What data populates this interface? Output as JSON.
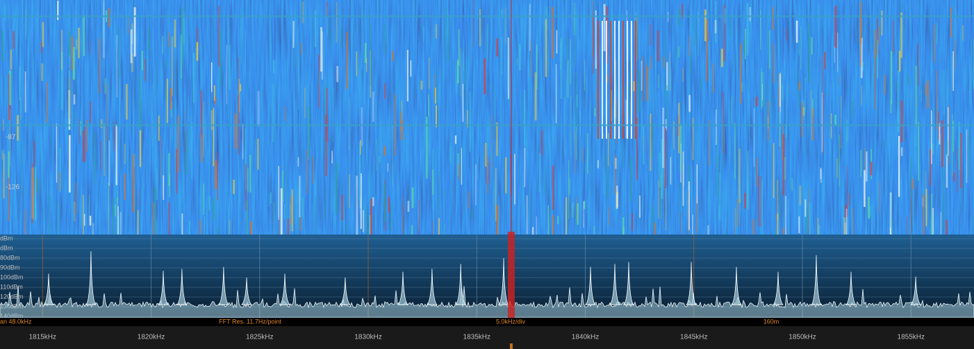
{
  "waterfall": {
    "labels": [
      "-87",
      "-126"
    ]
  },
  "spectrum": {
    "dbm_ticks": [
      {
        "value": -60,
        "label": "dBm"
      },
      {
        "value": -70,
        "label": "dBm"
      },
      {
        "value": -80,
        "label": "80dBm"
      },
      {
        "value": -90,
        "label": "90dBm"
      },
      {
        "value": -100,
        "label": "100dBm"
      },
      {
        "value": -110,
        "label": "110dBm"
      },
      {
        "value": -120,
        "label": "120dBm"
      },
      {
        "value": -130,
        "label": "130dBm"
      },
      {
        "value": -140,
        "label": "140dBm"
      }
    ],
    "noise_floor_dbm": -128,
    "tuned_khz": 1836.59,
    "peaks": [
      {
        "khz": 1815.28,
        "dbm": -96
      },
      {
        "khz": 1817.23,
        "dbm": -73
      },
      {
        "khz": 1820.56,
        "dbm": -93
      },
      {
        "khz": 1821.42,
        "dbm": -91
      },
      {
        "khz": 1823.34,
        "dbm": -89
      },
      {
        "khz": 1824.4,
        "dbm": -100
      },
      {
        "khz": 1826.16,
        "dbm": -96
      },
      {
        "khz": 1828.94,
        "dbm": -100
      },
      {
        "khz": 1831.6,
        "dbm": -94
      },
      {
        "khz": 1832.94,
        "dbm": -91
      },
      {
        "khz": 1834.26,
        "dbm": -86
      },
      {
        "khz": 1836.24,
        "dbm": -80
      },
      {
        "khz": 1840.24,
        "dbm": -89
      },
      {
        "khz": 1841.36,
        "dbm": -86
      },
      {
        "khz": 1842.0,
        "dbm": -84
      },
      {
        "khz": 1844.88,
        "dbm": -84
      },
      {
        "khz": 1846.96,
        "dbm": -89
      },
      {
        "khz": 1848.88,
        "dbm": -94
      },
      {
        "khz": 1850.64,
        "dbm": -77
      },
      {
        "khz": 1852.24,
        "dbm": -94
      },
      {
        "khz": 1855.22,
        "dbm": -99
      }
    ]
  },
  "status": {
    "span": "an 48.0kHz",
    "fft": "FFT Res. 11.7Hz/point",
    "div": "5.0kHz/div",
    "band": "160m"
  },
  "freq_axis": {
    "ticks": [
      {
        "value": 1815,
        "label": "1815kHz"
      },
      {
        "value": 1820,
        "label": "1820kHz"
      },
      {
        "value": 1825,
        "label": "1825kHz"
      },
      {
        "value": 1830,
        "label": "1830kHz"
      },
      {
        "value": 1835,
        "label": "1835kHz"
      },
      {
        "value": 1840,
        "label": "1840kHz"
      },
      {
        "value": 1845,
        "label": "1845kHz"
      },
      {
        "value": 1850,
        "label": "1850kHz"
      },
      {
        "value": 1855,
        "label": "1855kHz"
      }
    ]
  }
}
